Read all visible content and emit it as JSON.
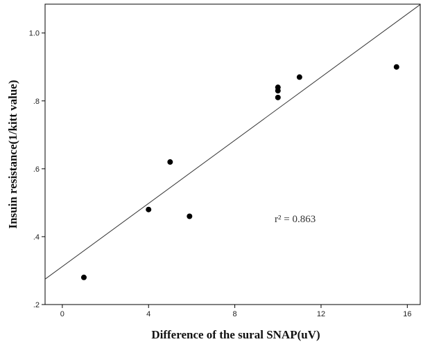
{
  "chart_data": {
    "type": "scatter",
    "title": "",
    "xlabel": "Difference of the sural SNAP(uV)",
    "ylabel": "Insuin resistance(1/kitt value)",
    "xlim": [
      -0.8,
      16.6
    ],
    "ylim": [
      0.2,
      1.085
    ],
    "xticks": [
      0,
      4,
      8,
      12,
      16
    ],
    "xtick_labels": [
      "0",
      "4",
      "8",
      "12",
      "16"
    ],
    "yticks": [
      0.2,
      0.4,
      0.6,
      0.8,
      1.0
    ],
    "ytick_labels": [
      ".2",
      ".4",
      ".6",
      ".8",
      "1.0"
    ],
    "grid": false,
    "points": [
      {
        "x": 1.0,
        "y": 0.28
      },
      {
        "x": 4.0,
        "y": 0.48
      },
      {
        "x": 5.0,
        "y": 0.62
      },
      {
        "x": 5.9,
        "y": 0.46
      },
      {
        "x": 10.0,
        "y": 0.84
      },
      {
        "x": 10.0,
        "y": 0.83
      },
      {
        "x": 10.0,
        "y": 0.81
      },
      {
        "x": 11.0,
        "y": 0.87
      },
      {
        "x": 15.5,
        "y": 0.9
      }
    ],
    "fit_line": {
      "intercept": 0.312,
      "slope": 0.0465
    },
    "annotation": "r² = 0.863"
  }
}
